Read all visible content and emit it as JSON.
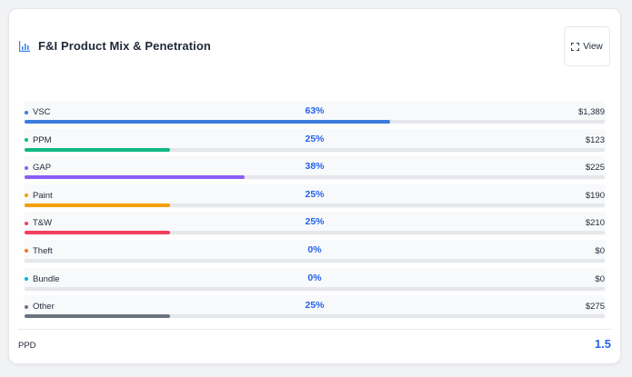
{
  "card": {
    "title": "F&I Product Mix & Penetration",
    "title_icon": "bar-chart-icon",
    "view_label": "View",
    "view_icon": "expand-icon"
  },
  "rows": [
    {
      "label": "VSC",
      "percent_label": "63%",
      "percent": 63,
      "amount": "$1,389",
      "color": "#3b7ddd"
    },
    {
      "label": "PPM",
      "percent_label": "25%",
      "percent": 25,
      "amount": "$123",
      "color": "#10b981"
    },
    {
      "label": "GAP",
      "percent_label": "38%",
      "percent": 38,
      "amount": "$225",
      "color": "#8b5cf6"
    },
    {
      "label": "Paint",
      "percent_label": "25%",
      "percent": 25,
      "amount": "$190",
      "color": "#f59e0b"
    },
    {
      "label": "T&W",
      "percent_label": "25%",
      "percent": 25,
      "amount": "$210",
      "color": "#f43f5e"
    },
    {
      "label": "Theft",
      "percent_label": "0%",
      "percent": 0,
      "amount": "$0",
      "color": "#f97316"
    },
    {
      "label": "Bundle",
      "percent_label": "0%",
      "percent": 0,
      "amount": "$0",
      "color": "#06b6d4"
    },
    {
      "label": "Other",
      "percent_label": "25%",
      "percent": 25,
      "amount": "$275",
      "color": "#6b7280"
    }
  ],
  "footer": {
    "ppd_label": "PPD",
    "ppd_value": "1.5"
  },
  "colors": {
    "accent": "#2563eb"
  }
}
